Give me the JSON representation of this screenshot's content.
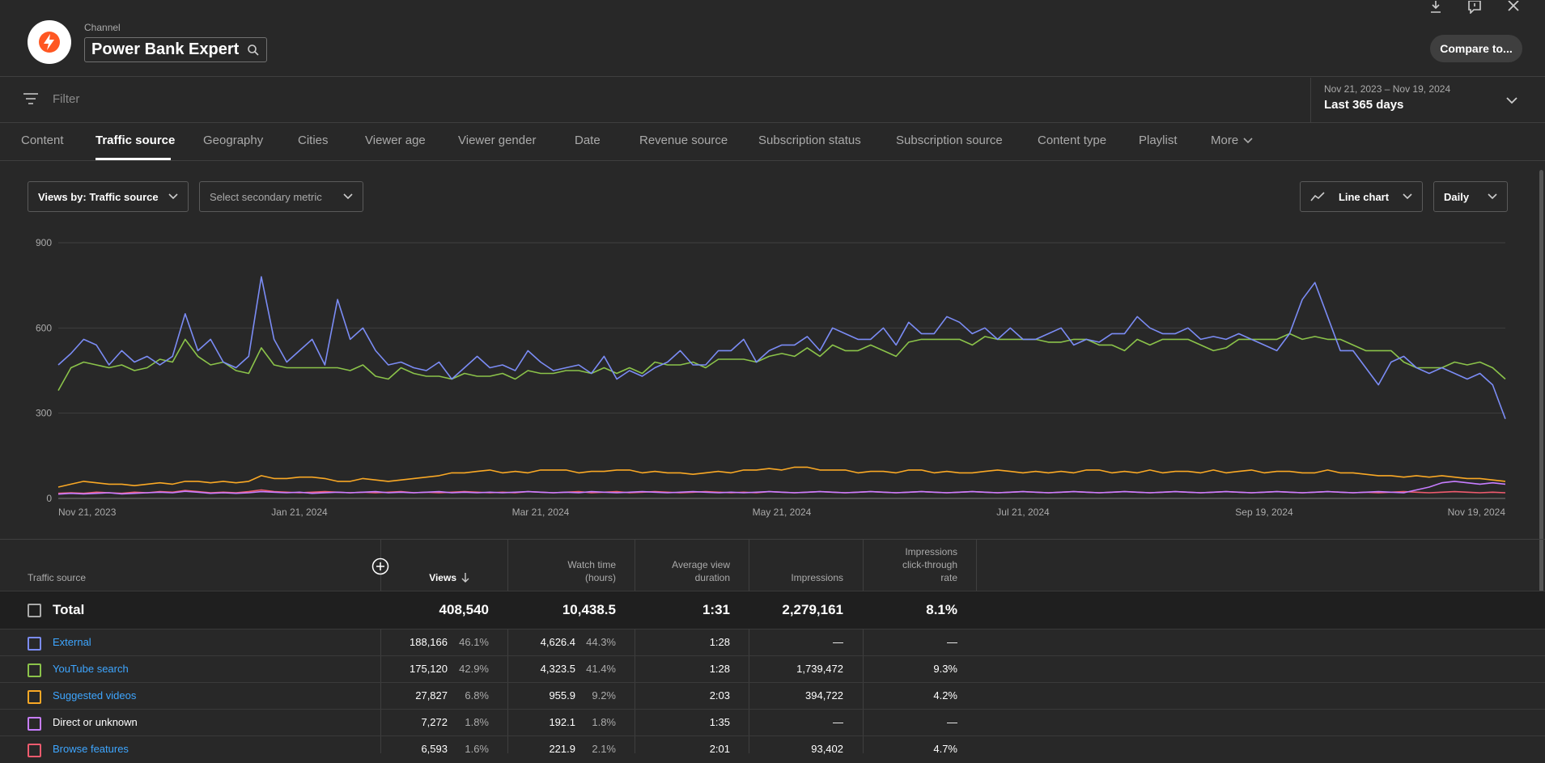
{
  "header": {
    "channel_label": "Channel",
    "channel_name": "Power Bank Expert",
    "compare_label": "Compare to...",
    "brand_color": "#ff5722"
  },
  "filter": {
    "placeholder": "Filter",
    "date_range": "Nov 21, 2023 – Nov 19, 2024",
    "period_label": "Last 365 days"
  },
  "tabs": [
    {
      "label": "Content"
    },
    {
      "label": "Traffic source",
      "active": true
    },
    {
      "label": "Geography"
    },
    {
      "label": "Cities"
    },
    {
      "label": "Viewer age"
    },
    {
      "label": "Viewer gender"
    },
    {
      "label": "Date"
    },
    {
      "label": "Revenue source"
    },
    {
      "label": "Subscription status"
    },
    {
      "label": "Subscription source"
    },
    {
      "label": "Content type"
    },
    {
      "label": "Playlist"
    },
    {
      "label": "More"
    }
  ],
  "controls": {
    "primary_metric": "Views by: Traffic source",
    "secondary_metric": "Select secondary metric",
    "chart_type": "Line chart",
    "granularity": "Daily"
  },
  "chart_data": {
    "type": "line",
    "ylim": [
      0,
      900
    ],
    "yticks": [
      "900",
      "600",
      "300",
      "0"
    ],
    "xticks": [
      "Nov 21, 2023",
      "Jan 21, 2024",
      "Mar 21, 2024",
      "May 21, 2024",
      "Jul 21, 2024",
      "Sep 19, 2024",
      "Nov 19, 2024"
    ],
    "grid": true,
    "series": [
      {
        "name": "External",
        "color": "#7b8cf5",
        "values": [
          470,
          510,
          560,
          540,
          470,
          520,
          480,
          500,
          470,
          500,
          650,
          520,
          560,
          480,
          460,
          500,
          780,
          560,
          480,
          520,
          560,
          470,
          700,
          560,
          600,
          520,
          470,
          480,
          460,
          450,
          480,
          420,
          460,
          500,
          460,
          470,
          450,
          520,
          480,
          450,
          460,
          470,
          440,
          500,
          420,
          450,
          430,
          460,
          480,
          520,
          470,
          470,
          520,
          520,
          560,
          480,
          520,
          540,
          540,
          570,
          520,
          600,
          580,
          560,
          560,
          600,
          540,
          620,
          580,
          580,
          640,
          620,
          580,
          600,
          560,
          600,
          560,
          560,
          580,
          600,
          540,
          560,
          550,
          580,
          580,
          640,
          600,
          580,
          580,
          600,
          560,
          570,
          560,
          580,
          560,
          540,
          520,
          580,
          700,
          760,
          640,
          520,
          520,
          460,
          400,
          480,
          500,
          460,
          440,
          460,
          440,
          420,
          440,
          400,
          280
        ]
      },
      {
        "name": "YouTube search",
        "color": "#8bc34a",
        "values": [
          380,
          460,
          480,
          470,
          460,
          470,
          450,
          460,
          490,
          480,
          560,
          500,
          470,
          480,
          450,
          440,
          530,
          470,
          460,
          460,
          460,
          460,
          460,
          450,
          470,
          430,
          420,
          460,
          440,
          430,
          430,
          420,
          440,
          430,
          430,
          440,
          420,
          450,
          440,
          440,
          450,
          450,
          440,
          460,
          440,
          460,
          440,
          480,
          470,
          470,
          480,
          460,
          490,
          490,
          490,
          480,
          500,
          510,
          500,
          530,
          500,
          540,
          520,
          520,
          540,
          520,
          500,
          550,
          560,
          560,
          560,
          560,
          540,
          570,
          560,
          560,
          560,
          560,
          550,
          550,
          560,
          560,
          540,
          540,
          520,
          560,
          540,
          560,
          560,
          560,
          540,
          520,
          530,
          560,
          560,
          560,
          560,
          580,
          560,
          570,
          560,
          560,
          540,
          520,
          520,
          520,
          480,
          460,
          460,
          460,
          480,
          470,
          480,
          460,
          420
        ]
      },
      {
        "name": "Suggested videos",
        "color": "#f9a825",
        "values": [
          40,
          50,
          60,
          55,
          50,
          50,
          45,
          50,
          55,
          50,
          60,
          60,
          55,
          60,
          55,
          60,
          80,
          70,
          70,
          75,
          75,
          70,
          60,
          60,
          70,
          65,
          60,
          65,
          70,
          75,
          80,
          90,
          90,
          95,
          100,
          90,
          95,
          90,
          100,
          100,
          100,
          90,
          95,
          95,
          100,
          100,
          90,
          95,
          90,
          90,
          85,
          90,
          95,
          90,
          100,
          100,
          105,
          100,
          110,
          110,
          100,
          100,
          100,
          90,
          95,
          95,
          90,
          100,
          100,
          90,
          95,
          90,
          90,
          95,
          100,
          95,
          90,
          95,
          90,
          95,
          90,
          100,
          100,
          90,
          95,
          90,
          100,
          90,
          95,
          95,
          90,
          100,
          90,
          95,
          100,
          90,
          95,
          95,
          90,
          90,
          100,
          90,
          90,
          85,
          80,
          80,
          75,
          80,
          75,
          80,
          75,
          70,
          70,
          65,
          60
        ]
      },
      {
        "name": "Direct or unknown",
        "color": "#c77dff",
        "values": [
          15,
          18,
          16,
          18,
          20,
          16,
          18,
          20,
          22,
          20,
          25,
          22,
          18,
          20,
          18,
          20,
          24,
          22,
          20,
          22,
          18,
          20,
          22,
          20,
          22,
          24,
          20,
          22,
          20,
          22,
          24,
          20,
          22,
          20,
          22,
          20,
          22,
          24,
          22,
          20,
          22,
          20,
          24,
          22,
          20,
          22,
          24,
          22,
          20,
          22,
          24,
          22,
          20,
          22,
          20,
          22,
          24,
          22,
          20,
          22,
          24,
          22,
          20,
          22,
          24,
          22,
          20,
          22,
          24,
          22,
          20,
          22,
          24,
          22,
          20,
          22,
          24,
          22,
          20,
          22,
          24,
          22,
          20,
          22,
          24,
          22,
          20,
          22,
          24,
          22,
          20,
          22,
          24,
          22,
          20,
          22,
          24,
          22,
          20,
          22,
          24,
          22,
          20,
          22,
          24,
          22,
          20,
          30,
          40,
          55,
          60,
          55,
          50,
          55,
          50
        ]
      },
      {
        "name": "Browse features",
        "color": "#ef5b6e",
        "values": [
          18,
          20,
          18,
          22,
          20,
          18,
          22,
          20,
          24,
          22,
          28,
          24,
          20,
          22,
          20,
          24,
          30,
          24,
          22,
          20,
          22,
          24,
          22,
          20,
          22,
          20,
          22,
          24,
          20,
          22,
          20,
          22,
          24,
          22,
          20,
          22,
          20,
          24,
          22,
          20,
          22,
          24,
          20,
          22,
          24,
          20,
          22,
          24,
          22,
          20,
          22,
          24,
          22,
          20,
          22,
          20,
          24,
          22,
          20,
          22,
          24,
          22,
          20,
          22,
          24,
          22,
          20,
          22,
          24,
          22,
          20,
          22,
          24,
          22,
          20,
          22,
          24,
          22,
          20,
          22,
          24,
          22,
          20,
          22,
          24,
          22,
          20,
          22,
          24,
          22,
          20,
          22,
          24,
          22,
          20,
          22,
          24,
          22,
          20,
          22,
          24,
          22,
          20,
          22,
          20,
          22,
          24,
          22,
          20,
          22,
          24,
          22,
          20,
          22,
          20
        ]
      }
    ]
  },
  "table": {
    "headers": {
      "source": "Traffic source",
      "views": "Views",
      "watch_time_1": "Watch time",
      "watch_time_2": "(hours)",
      "avd_1": "Average view",
      "avd_2": "duration",
      "impressions": "Impressions",
      "ctr_1": "Impressions",
      "ctr_2": "click-through",
      "ctr_3": "rate"
    },
    "total": {
      "label": "Total",
      "views": "408,540",
      "watch_time": "10,438.5",
      "avd": "1:31",
      "impressions": "2,279,161",
      "ctr": "8.1%"
    },
    "rows": [
      {
        "source": "External",
        "link": true,
        "color": "#7b8cf5",
        "views": "188,166",
        "views_pct": "46.1%",
        "watch": "4,626.4",
        "watch_pct": "44.3%",
        "avd": "1:28",
        "impressions": "—",
        "ctr": "—"
      },
      {
        "source": "YouTube search",
        "link": true,
        "color": "#8bc34a",
        "views": "175,120",
        "views_pct": "42.9%",
        "watch": "4,323.5",
        "watch_pct": "41.4%",
        "avd": "1:28",
        "impressions": "1,739,472",
        "ctr": "9.3%"
      },
      {
        "source": "Suggested videos",
        "link": true,
        "color": "#f9a825",
        "views": "27,827",
        "views_pct": "6.8%",
        "watch": "955.9",
        "watch_pct": "9.2%",
        "avd": "2:03",
        "impressions": "394,722",
        "ctr": "4.2%"
      },
      {
        "source": "Direct or unknown",
        "link": false,
        "color": "#c77dff",
        "views": "7,272",
        "views_pct": "1.8%",
        "watch": "192.1",
        "watch_pct": "1.8%",
        "avd": "1:35",
        "impressions": "—",
        "ctr": "—"
      },
      {
        "source": "Browse features",
        "link": true,
        "color": "#ef5b6e",
        "views": "6,593",
        "views_pct": "1.6%",
        "watch": "221.9",
        "watch_pct": "2.1%",
        "avd": "2:01",
        "impressions": "93,402",
        "ctr": "4.7%"
      }
    ]
  }
}
